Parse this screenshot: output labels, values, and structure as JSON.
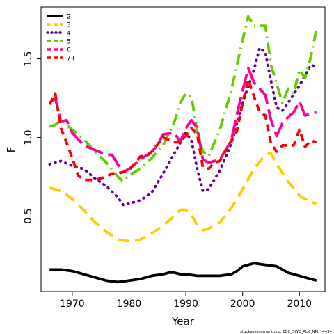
{
  "chart_data": {
    "type": "line",
    "xlabel": "Year",
    "ylabel": "F",
    "xlim": [
      1964.5,
      2014.5
    ],
    "ylim": [
      0.02,
      1.83
    ],
    "x_ticks": [
      1970,
      1980,
      1990,
      2000,
      2010
    ],
    "y_ticks": [
      0.5,
      1.0,
      1.5
    ],
    "x_tick_labels": [
      "1970",
      "1980",
      "1990",
      "2000",
      "2010"
    ],
    "y_tick_labels": [
      "0.5",
      "1.0",
      "1.5"
    ],
    "grid": false,
    "legend_position": "top-left",
    "footnote": "stockassessment.org, EBC_SWE_ALK_NM, r4434",
    "series": [
      {
        "name": "2",
        "color": "#000000",
        "dash": "solid",
        "points": [
          [
            1966,
            0.16
          ],
          [
            1968,
            0.16
          ],
          [
            1970,
            0.15
          ],
          [
            1972,
            0.13
          ],
          [
            1974,
            0.11
          ],
          [
            1976,
            0.09
          ],
          [
            1978,
            0.08
          ],
          [
            1980,
            0.09
          ],
          [
            1982,
            0.1
          ],
          [
            1984,
            0.12
          ],
          [
            1986,
            0.13
          ],
          [
            1987,
            0.14
          ],
          [
            1988,
            0.14
          ],
          [
            1989,
            0.13
          ],
          [
            1990,
            0.13
          ],
          [
            1992,
            0.12
          ],
          [
            1994,
            0.12
          ],
          [
            1996,
            0.12
          ],
          [
            1998,
            0.13
          ],
          [
            1999,
            0.15
          ],
          [
            2000,
            0.18
          ],
          [
            2001,
            0.19
          ],
          [
            2002,
            0.2
          ],
          [
            2004,
            0.19
          ],
          [
            2006,
            0.18
          ],
          [
            2008,
            0.14
          ],
          [
            2010,
            0.12
          ],
          [
            2012,
            0.1
          ],
          [
            2013,
            0.09
          ]
        ]
      },
      {
        "name": "3",
        "color": "#ffcc00",
        "dash": "long",
        "points": [
          [
            1966,
            0.68
          ],
          [
            1968,
            0.66
          ],
          [
            1970,
            0.61
          ],
          [
            1972,
            0.54
          ],
          [
            1974,
            0.46
          ],
          [
            1976,
            0.4
          ],
          [
            1978,
            0.35
          ],
          [
            1980,
            0.34
          ],
          [
            1982,
            0.35
          ],
          [
            1984,
            0.39
          ],
          [
            1986,
            0.44
          ],
          [
            1988,
            0.5
          ],
          [
            1989,
            0.54
          ],
          [
            1990,
            0.54
          ],
          [
            1991,
            0.51
          ],
          [
            1992,
            0.44
          ],
          [
            1993,
            0.41
          ],
          [
            1994,
            0.42
          ],
          [
            1996,
            0.46
          ],
          [
            1998,
            0.55
          ],
          [
            2000,
            0.67
          ],
          [
            2002,
            0.8
          ],
          [
            2004,
            0.89
          ],
          [
            2005,
            0.9
          ],
          [
            2006,
            0.83
          ],
          [
            2008,
            0.72
          ],
          [
            2010,
            0.63
          ],
          [
            2012,
            0.59
          ],
          [
            2013,
            0.58
          ]
        ]
      },
      {
        "name": "4",
        "color": "#660099",
        "dash": "dotted",
        "points": [
          [
            1966,
            0.83
          ],
          [
            1968,
            0.85
          ],
          [
            1970,
            0.82
          ],
          [
            1972,
            0.8
          ],
          [
            1974,
            0.74
          ],
          [
            1976,
            0.69
          ],
          [
            1978,
            0.62
          ],
          [
            1979,
            0.57
          ],
          [
            1980,
            0.58
          ],
          [
            1982,
            0.6
          ],
          [
            1984,
            0.65
          ],
          [
            1986,
            0.77
          ],
          [
            1988,
            0.9
          ],
          [
            1990,
            1.03
          ],
          [
            1991,
            0.98
          ],
          [
            1992,
            0.8
          ],
          [
            1993,
            0.66
          ],
          [
            1994,
            0.67
          ],
          [
            1996,
            0.79
          ],
          [
            1998,
            0.96
          ],
          [
            2000,
            1.22
          ],
          [
            2002,
            1.43
          ],
          [
            2003,
            1.57
          ],
          [
            2004,
            1.54
          ],
          [
            2005,
            1.36
          ],
          [
            2006,
            1.19
          ],
          [
            2007,
            1.17
          ],
          [
            2008,
            1.22
          ],
          [
            2010,
            1.33
          ],
          [
            2012,
            1.46
          ],
          [
            2013,
            1.45
          ]
        ]
      },
      {
        "name": "5",
        "color": "#66cc00",
        "dash": "dashdot",
        "points": [
          [
            1966,
            1.07
          ],
          [
            1967,
            1.08
          ],
          [
            1968,
            1.11
          ],
          [
            1970,
            1.05
          ],
          [
            1972,
            0.99
          ],
          [
            1974,
            0.91
          ],
          [
            1976,
            0.84
          ],
          [
            1978,
            0.75
          ],
          [
            1979,
            0.72
          ],
          [
            1980,
            0.76
          ],
          [
            1982,
            0.8
          ],
          [
            1984,
            0.87
          ],
          [
            1986,
            0.95
          ],
          [
            1988,
            1.1
          ],
          [
            1989,
            1.22
          ],
          [
            1990,
            1.28
          ],
          [
            1991,
            1.26
          ],
          [
            1992,
            1.04
          ],
          [
            1993,
            0.91
          ],
          [
            1994,
            0.88
          ],
          [
            1996,
            1.05
          ],
          [
            1998,
            1.3
          ],
          [
            2000,
            1.62
          ],
          [
            2001,
            1.77
          ],
          [
            2002,
            1.71
          ],
          [
            2004,
            1.71
          ],
          [
            2005,
            1.46
          ],
          [
            2006,
            1.34
          ],
          [
            2007,
            1.22
          ],
          [
            2008,
            1.31
          ],
          [
            2009,
            1.28
          ],
          [
            2010,
            1.43
          ],
          [
            2011,
            1.38
          ],
          [
            2012,
            1.51
          ],
          [
            2013,
            1.69
          ]
        ]
      },
      {
        "name": "6",
        "color": "#ff0099",
        "dash": "longdash",
        "points": [
          [
            1966,
            1.22
          ],
          [
            1967,
            1.25
          ],
          [
            1968,
            1.1
          ],
          [
            1969,
            1.11
          ],
          [
            1970,
            1.03
          ],
          [
            1972,
            0.95
          ],
          [
            1974,
            0.92
          ],
          [
            1976,
            0.89
          ],
          [
            1977,
            0.89
          ],
          [
            1978,
            0.83
          ],
          [
            1979,
            0.78
          ],
          [
            1980,
            0.8
          ],
          [
            1982,
            0.86
          ],
          [
            1984,
            0.91
          ],
          [
            1985,
            0.95
          ],
          [
            1986,
            1.02
          ],
          [
            1988,
            1.03
          ],
          [
            1989,
            0.97
          ],
          [
            1990,
            1.06
          ],
          [
            1991,
            1.11
          ],
          [
            1992,
            1.06
          ],
          [
            1993,
            0.86
          ],
          [
            1994,
            0.84
          ],
          [
            1996,
            0.86
          ],
          [
            1998,
            0.98
          ],
          [
            1999,
            1.15
          ],
          [
            2000,
            1.3
          ],
          [
            2001,
            1.44
          ],
          [
            2002,
            1.35
          ],
          [
            2004,
            1.27
          ],
          [
            2005,
            1.11
          ],
          [
            2006,
            1.01
          ],
          [
            2007,
            1.09
          ],
          [
            2008,
            1.13
          ],
          [
            2009,
            1.16
          ],
          [
            2010,
            1.23
          ],
          [
            2011,
            1.14
          ],
          [
            2012,
            1.15
          ],
          [
            2013,
            1.16
          ]
        ]
      },
      {
        "name": "7+",
        "color": "#ff0000",
        "dash": "dashed",
        "points": [
          [
            1966,
            1.21
          ],
          [
            1967,
            1.28
          ],
          [
            1968,
            1.06
          ],
          [
            1970,
            0.87
          ],
          [
            1971,
            0.76
          ],
          [
            1972,
            0.73
          ],
          [
            1974,
            0.73
          ],
          [
            1976,
            0.75
          ],
          [
            1977,
            0.77
          ],
          [
            1978,
            0.77
          ],
          [
            1980,
            0.79
          ],
          [
            1982,
            0.88
          ],
          [
            1983,
            0.88
          ],
          [
            1984,
            0.91
          ],
          [
            1986,
            1.0
          ],
          [
            1988,
            0.97
          ],
          [
            1989,
            0.97
          ],
          [
            1990,
            1.01
          ],
          [
            1991,
            1.06
          ],
          [
            1992,
            1.02
          ],
          [
            1993,
            0.81
          ],
          [
            1994,
            0.8
          ],
          [
            1995,
            0.84
          ],
          [
            1996,
            0.85
          ],
          [
            1998,
            0.98
          ],
          [
            1999,
            1.04
          ],
          [
            2000,
            1.22
          ],
          [
            2001,
            1.37
          ],
          [
            2002,
            1.26
          ],
          [
            2003,
            1.16
          ],
          [
            2004,
            1.14
          ],
          [
            2005,
            0.96
          ],
          [
            2006,
            0.91
          ],
          [
            2007,
            0.95
          ],
          [
            2008,
            0.95
          ],
          [
            2009,
            0.95
          ],
          [
            2010,
            1.05
          ],
          [
            2011,
            0.94
          ],
          [
            2012,
            0.98
          ],
          [
            2013,
            0.97
          ]
        ]
      }
    ]
  }
}
